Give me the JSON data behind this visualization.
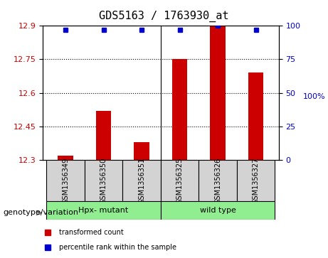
{
  "title": "GDS5163 / 1763930_at",
  "samples": [
    "GSM1356349",
    "GSM1356350",
    "GSM1356351",
    "GSM1356325",
    "GSM1356326",
    "GSM1356327"
  ],
  "transformed_counts": [
    12.32,
    12.52,
    12.38,
    12.75,
    12.9,
    12.69
  ],
  "percentile_ranks": [
    97,
    97,
    97,
    97,
    100,
    97
  ],
  "groups": [
    "Hpx- mutant",
    "Hpx- mutant",
    "Hpx- mutant",
    "wild type",
    "wild type",
    "wild type"
  ],
  "group_labels": [
    "Hpx- mutant",
    "wild type"
  ],
  "group_colors": [
    "#90EE90",
    "#90EE90"
  ],
  "ylim_left": [
    12.3,
    12.9
  ],
  "ylim_right": [
    0,
    100
  ],
  "yticks_left": [
    12.3,
    12.45,
    12.6,
    12.75,
    12.9
  ],
  "yticks_right": [
    0,
    25,
    50,
    75,
    100
  ],
  "bar_color": "#CC0000",
  "dot_color": "#0000CC",
  "bg_color": "#D3D3D3",
  "legend_items": [
    "transformed count",
    "percentile rank within the sample"
  ],
  "legend_colors": [
    "#CC0000",
    "#0000CC"
  ],
  "genotype_label": "genotype/variation",
  "right_yaxis_label": "100%"
}
